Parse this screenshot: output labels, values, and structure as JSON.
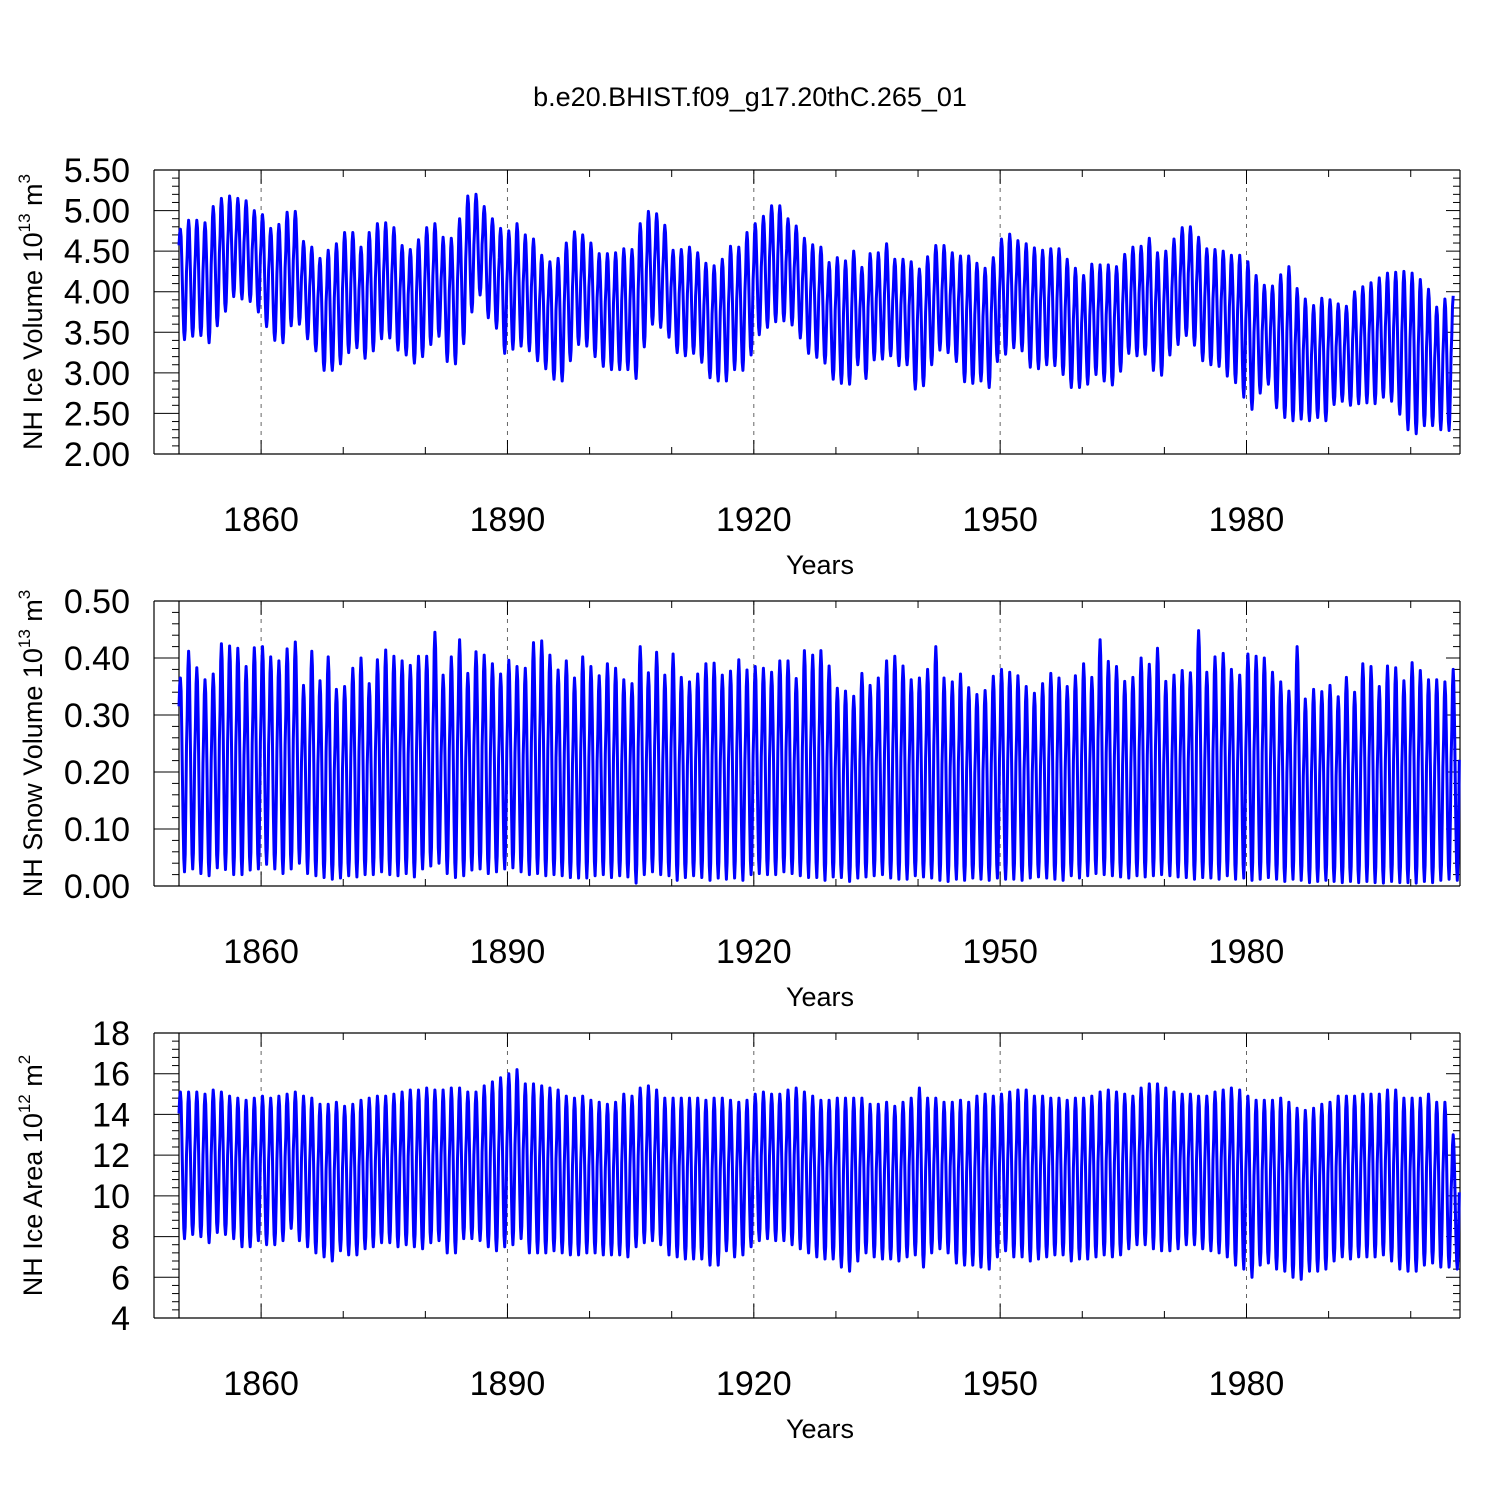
{
  "figure_title": "b.e20.BHIST.f09_g17.20thC.265_01",
  "line_color": "#0000ff",
  "chart_data": [
    {
      "type": "line",
      "xlabel": "Years",
      "ylabel_parts": [
        "NH Ice Volume 10",
        "13",
        " m",
        "3"
      ],
      "xlim": [
        1850,
        2006
      ],
      "ylim": [
        2.0,
        5.5
      ],
      "xticks": [
        1860,
        1890,
        1920,
        1950,
        1980
      ],
      "yticks": [
        "2.00",
        "2.50",
        "3.00",
        "3.50",
        "4.00",
        "4.50",
        "5.00",
        "5.50"
      ],
      "grid": "dashed vertical at major x ticks",
      "series": [
        {
          "x_start": 1850,
          "x_end": 2006,
          "annual_maxima": [
            4.77,
            4.88,
            4.88,
            4.85,
            5.05,
            5.15,
            5.18,
            5.15,
            5.12,
            5.0,
            4.95,
            4.78,
            4.83,
            4.98,
            4.99,
            4.62,
            4.55,
            4.41,
            4.51,
            4.59,
            4.73,
            4.73,
            4.55,
            4.73,
            4.84,
            4.85,
            4.79,
            4.57,
            4.52,
            4.64,
            4.79,
            4.84,
            4.67,
            4.66,
            4.9,
            5.18,
            5.2,
            5.05,
            4.9,
            4.78,
            4.75,
            4.84,
            4.7,
            4.65,
            4.45,
            4.37,
            4.41,
            4.6,
            4.74,
            4.7,
            4.6,
            4.47,
            4.47,
            4.48,
            4.53,
            4.52,
            4.84,
            4.99,
            4.96,
            4.82,
            4.51,
            4.52,
            4.55,
            4.48,
            4.35,
            4.32,
            4.4,
            4.56,
            4.55,
            4.73,
            4.84,
            4.93,
            5.06,
            5.06,
            4.9,
            4.81,
            4.66,
            4.58,
            4.55,
            4.36,
            4.42,
            4.38,
            4.5,
            4.3,
            4.47,
            4.48,
            4.59,
            4.4,
            4.4,
            4.37,
            4.28,
            4.43,
            4.57,
            4.57,
            4.48,
            4.44,
            4.44,
            4.35,
            4.29,
            4.42,
            4.65,
            4.71,
            4.63,
            4.59,
            4.54,
            4.51,
            4.53,
            4.53,
            4.4,
            4.29,
            4.2,
            4.34,
            4.33,
            4.33,
            4.31,
            4.46,
            4.55,
            4.56,
            4.66,
            4.48,
            4.5,
            4.65,
            4.79,
            4.8,
            4.67,
            4.53,
            4.52,
            4.5,
            4.45,
            4.45,
            4.37,
            4.2,
            4.08,
            4.07,
            4.21,
            4.31,
            4.04,
            3.91,
            3.83,
            3.92,
            3.9,
            3.85,
            3.82,
            4.0,
            4.06,
            4.11,
            4.17,
            4.23,
            4.24,
            4.25,
            4.23,
            4.15,
            4.03,
            3.81,
            3.91,
            3.95,
            3.87,
            3.86
          ],
          "annual_minima": [
            3.41,
            3.45,
            3.46,
            3.37,
            3.58,
            3.76,
            3.94,
            3.91,
            3.88,
            3.75,
            3.57,
            3.4,
            3.37,
            3.58,
            3.6,
            3.42,
            3.27,
            3.03,
            3.03,
            3.11,
            3.25,
            3.31,
            3.18,
            3.27,
            3.42,
            3.43,
            3.28,
            3.22,
            3.12,
            3.2,
            3.35,
            3.45,
            3.14,
            3.11,
            3.36,
            3.75,
            3.96,
            3.68,
            3.55,
            3.24,
            3.29,
            3.33,
            3.27,
            3.15,
            3.05,
            2.92,
            2.9,
            3.15,
            3.35,
            3.33,
            3.2,
            3.08,
            3.04,
            3.04,
            3.04,
            2.93,
            3.32,
            3.6,
            3.56,
            3.44,
            3.25,
            3.21,
            3.24,
            3.13,
            2.94,
            2.9,
            2.9,
            3.04,
            3.03,
            3.22,
            3.47,
            3.56,
            3.63,
            3.64,
            3.59,
            3.43,
            3.24,
            3.19,
            3.12,
            2.92,
            2.87,
            2.86,
            3.1,
            2.93,
            3.16,
            3.17,
            3.21,
            3.09,
            3.1,
            2.8,
            2.84,
            3.1,
            3.28,
            3.25,
            3.14,
            2.89,
            2.87,
            2.9,
            2.82,
            3.14,
            3.23,
            3.31,
            3.27,
            3.07,
            3.05,
            3.1,
            3.09,
            2.98,
            2.82,
            2.82,
            2.86,
            2.98,
            2.9,
            2.85,
            3.02,
            3.24,
            3.21,
            3.23,
            3.03,
            2.97,
            3.22,
            3.35,
            3.46,
            3.34,
            3.15,
            3.1,
            3.08,
            2.96,
            2.88,
            2.7,
            2.55,
            2.75,
            2.86,
            2.57,
            2.45,
            2.41,
            2.43,
            2.41,
            2.45,
            2.41,
            2.61,
            2.65,
            2.6,
            2.62,
            2.63,
            2.62,
            2.7,
            2.65,
            2.49,
            2.3,
            2.25,
            2.35,
            2.35,
            2.3,
            2.29
          ]
        }
      ]
    },
    {
      "type": "line",
      "xlabel": "Years",
      "ylabel_parts": [
        "NH Snow Volume 10",
        "13",
        " m",
        "3"
      ],
      "xlim": [
        1850,
        2006
      ],
      "ylim": [
        0.0,
        0.5
      ],
      "xticks": [
        1860,
        1890,
        1920,
        1950,
        1980
      ],
      "yticks": [
        "0.00",
        "0.10",
        "0.20",
        "0.30",
        "0.40",
        "0.50"
      ],
      "grid": "dashed vertical at major x ticks",
      "series": [
        {
          "x_start": 1850,
          "x_end": 2006,
          "annual_maxima": [
            0.365,
            0.412,
            0.383,
            0.362,
            0.372,
            0.425,
            0.421,
            0.417,
            0.385,
            0.418,
            0.42,
            0.402,
            0.395,
            0.416,
            0.428,
            0.352,
            0.412,
            0.36,
            0.402,
            0.345,
            0.35,
            0.382,
            0.4,
            0.355,
            0.397,
            0.414,
            0.403,
            0.395,
            0.387,
            0.403,
            0.403,
            0.445,
            0.37,
            0.402,
            0.432,
            0.373,
            0.411,
            0.405,
            0.39,
            0.372,
            0.396,
            0.385,
            0.382,
            0.427,
            0.43,
            0.405,
            0.379,
            0.395,
            0.365,
            0.402,
            0.385,
            0.369,
            0.39,
            0.382,
            0.362,
            0.355,
            0.42,
            0.374,
            0.41,
            0.37,
            0.407,
            0.366,
            0.358,
            0.372,
            0.39,
            0.391,
            0.37,
            0.377,
            0.397,
            0.379,
            0.385,
            0.382,
            0.375,
            0.395,
            0.395,
            0.364,
            0.413,
            0.405,
            0.413,
            0.386,
            0.347,
            0.342,
            0.333,
            0.373,
            0.352,
            0.365,
            0.395,
            0.403,
            0.386,
            0.362,
            0.365,
            0.38,
            0.42,
            0.365,
            0.358,
            0.372,
            0.348,
            0.336,
            0.343,
            0.368,
            0.38,
            0.375,
            0.369,
            0.35,
            0.338,
            0.355,
            0.373,
            0.365,
            0.35,
            0.369,
            0.39,
            0.366,
            0.432,
            0.394,
            0.385,
            0.359,
            0.366,
            0.4,
            0.389,
            0.417,
            0.359,
            0.37,
            0.378,
            0.374,
            0.448,
            0.375,
            0.402,
            0.408,
            0.38,
            0.37,
            0.407,
            0.403,
            0.4,
            0.375,
            0.358,
            0.342,
            0.42,
            0.328,
            0.345,
            0.341,
            0.352,
            0.332,
            0.366,
            0.34,
            0.39,
            0.385,
            0.35,
            0.386,
            0.383,
            0.36,
            0.392,
            0.378,
            0.362,
            0.362,
            0.358,
            0.38
          ],
          "annual_minima": [
            0.025,
            0.03,
            0.022,
            0.018,
            0.032,
            0.029,
            0.02,
            0.02,
            0.028,
            0.03,
            0.038,
            0.03,
            0.022,
            0.03,
            0.04,
            0.022,
            0.018,
            0.015,
            0.012,
            0.014,
            0.018,
            0.016,
            0.02,
            0.02,
            0.025,
            0.02,
            0.018,
            0.022,
            0.016,
            0.03,
            0.035,
            0.04,
            0.022,
            0.015,
            0.018,
            0.028,
            0.03,
            0.022,
            0.025,
            0.03,
            0.032,
            0.025,
            0.02,
            0.022,
            0.018,
            0.02,
            0.018,
            0.015,
            0.014,
            0.014,
            0.018,
            0.02,
            0.015,
            0.018,
            0.016,
            0.005,
            0.02,
            0.025,
            0.02,
            0.018,
            0.01,
            0.015,
            0.018,
            0.015,
            0.01,
            0.014,
            0.012,
            0.014,
            0.01,
            0.02,
            0.022,
            0.02,
            0.02,
            0.025,
            0.022,
            0.018,
            0.015,
            0.015,
            0.01,
            0.016,
            0.015,
            0.008,
            0.014,
            0.016,
            0.018,
            0.02,
            0.014,
            0.012,
            0.012,
            0.018,
            0.016,
            0.014,
            0.01,
            0.008,
            0.012,
            0.01,
            0.014,
            0.012,
            0.01,
            0.014,
            0.012,
            0.012,
            0.01,
            0.014,
            0.016,
            0.014,
            0.012,
            0.01,
            0.018,
            0.014,
            0.018,
            0.022,
            0.02,
            0.018,
            0.016,
            0.014,
            0.018,
            0.016,
            0.018,
            0.02,
            0.018,
            0.016,
            0.015,
            0.012,
            0.015,
            0.014,
            0.012,
            0.018,
            0.012,
            0.014,
            0.01,
            0.012,
            0.015,
            0.012,
            0.008,
            0.012,
            0.01,
            0.006,
            0.008,
            0.01,
            0.008,
            0.006,
            0.008,
            0.006,
            0.008,
            0.006,
            0.005,
            0.008,
            0.006,
            0.006,
            0.005,
            0.008,
            0.006,
            0.01,
            0.012,
            0.01
          ]
        }
      ]
    },
    {
      "type": "line",
      "xlabel": "Years",
      "ylabel_parts": [
        "NH Ice Area 10",
        "12",
        " m",
        "2"
      ],
      "xlim": [
        1850,
        2006
      ],
      "ylim": [
        4,
        18
      ],
      "xticks": [
        1860,
        1890,
        1920,
        1950,
        1980
      ],
      "yticks": [
        "4",
        "6",
        "8",
        "10",
        "12",
        "14",
        "16",
        "18"
      ],
      "grid": "dashed vertical at major x ticks",
      "series": [
        {
          "x_start": 1850,
          "x_end": 2006,
          "annual_maxima": [
            15.1,
            15.1,
            15.1,
            15.0,
            15.2,
            15.1,
            14.9,
            14.8,
            14.7,
            14.8,
            14.9,
            14.8,
            14.9,
            15.0,
            15.1,
            14.9,
            14.8,
            14.5,
            14.5,
            14.6,
            14.4,
            14.5,
            14.7,
            14.8,
            14.9,
            14.9,
            15.0,
            15.1,
            15.2,
            15.2,
            15.3,
            15.2,
            15.2,
            15.3,
            15.3,
            15.1,
            15.1,
            15.4,
            15.6,
            15.8,
            16.0,
            16.2,
            15.5,
            15.5,
            15.4,
            15.3,
            15.2,
            14.9,
            14.8,
            14.9,
            14.7,
            14.6,
            14.5,
            14.6,
            15.0,
            14.9,
            15.3,
            15.4,
            15.2,
            14.8,
            14.8,
            14.8,
            14.8,
            14.8,
            14.7,
            14.8,
            14.8,
            14.7,
            14.6,
            14.7,
            15.0,
            15.1,
            15.0,
            15.0,
            15.2,
            15.3,
            15.1,
            14.9,
            14.7,
            14.7,
            14.8,
            14.8,
            14.8,
            14.8,
            14.5,
            14.5,
            14.6,
            14.4,
            14.6,
            14.8,
            15.3,
            14.8,
            14.8,
            14.6,
            14.6,
            14.7,
            14.6,
            14.9,
            15.0,
            14.9,
            15.0,
            15.1,
            15.2,
            15.2,
            14.9,
            14.9,
            14.8,
            14.8,
            14.7,
            14.8,
            14.8,
            14.9,
            15.1,
            15.2,
            15.1,
            15.0,
            14.9,
            15.3,
            15.5,
            15.5,
            15.3,
            15.1,
            15.0,
            15.0,
            14.9,
            14.9,
            15.1,
            15.2,
            15.3,
            15.2,
            14.9,
            14.7,
            14.7,
            14.7,
            14.8,
            14.6,
            14.3,
            14.2,
            14.3,
            14.5,
            14.6,
            14.9,
            14.9,
            14.9,
            15.0,
            15.0,
            15.0,
            15.2,
            15.2,
            14.8,
            14.8,
            14.8,
            15.0,
            14.6,
            14.6,
            13.0
          ],
          "annual_minima": [
            7.9,
            8.1,
            8.0,
            7.7,
            8.2,
            8.1,
            7.9,
            7.5,
            7.5,
            7.8,
            7.6,
            7.6,
            7.8,
            8.4,
            7.8,
            7.5,
            7.2,
            7.0,
            6.8,
            7.3,
            7.1,
            7.1,
            7.4,
            7.5,
            7.7,
            7.7,
            7.5,
            7.6,
            7.5,
            7.4,
            7.7,
            7.8,
            7.2,
            7.2,
            7.9,
            7.9,
            7.8,
            7.5,
            7.3,
            7.5,
            7.6,
            7.9,
            7.2,
            7.2,
            7.2,
            7.3,
            7.2,
            7.1,
            7.1,
            7.2,
            7.2,
            7.1,
            7.1,
            7.1,
            7.0,
            7.5,
            7.7,
            7.8,
            7.6,
            7.1,
            7.0,
            6.9,
            6.9,
            6.9,
            6.6,
            6.6,
            7.3,
            7.0,
            7.1,
            7.5,
            7.8,
            7.9,
            7.8,
            7.8,
            7.6,
            7.4,
            7.2,
            7.0,
            6.9,
            6.9,
            6.5,
            6.3,
            6.8,
            7.2,
            7.0,
            6.9,
            6.9,
            6.8,
            7.0,
            7.1,
            6.5,
            7.2,
            7.4,
            7.2,
            6.7,
            6.6,
            6.6,
            6.5,
            6.4,
            7.0,
            7.3,
            7.0,
            7.0,
            6.8,
            6.9,
            7.0,
            7.1,
            7.1,
            6.8,
            6.9,
            6.9,
            7.0,
            7.1,
            7.0,
            7.1,
            7.4,
            7.6,
            7.6,
            7.4,
            7.3,
            7.3,
            7.4,
            7.6,
            7.6,
            7.4,
            7.3,
            7.2,
            7.0,
            6.6,
            6.4,
            6.0,
            6.6,
            6.7,
            6.4,
            6.3,
            6.0,
            5.9,
            6.3,
            6.3,
            6.4,
            6.8,
            7.0,
            6.9,
            7.0,
            7.0,
            7.0,
            7.1,
            6.8,
            6.4,
            6.3,
            6.3,
            6.6,
            6.7,
            6.5,
            6.5,
            6.4
          ]
        }
      ]
    }
  ]
}
